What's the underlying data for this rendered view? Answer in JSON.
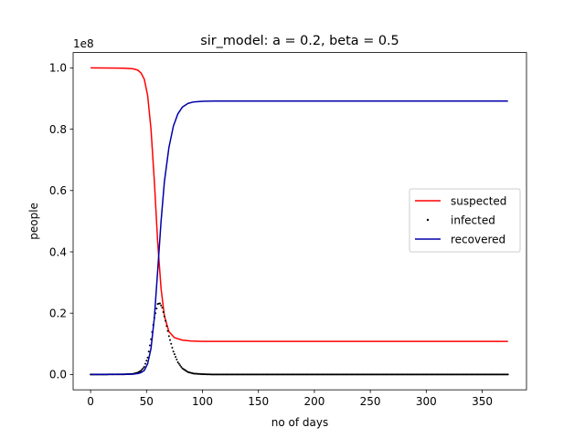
{
  "chart_data": {
    "type": "line",
    "title": "sir_model: a = 0.2, beta = 0.5",
    "xlabel": "no of days",
    "ylabel": "people",
    "y_offset_text": "1e8",
    "xlim": [
      -15.6,
      389.6
    ],
    "ylim": [
      -0.05,
      1.05
    ],
    "y_unit_scale": 100000000,
    "x_ticks": [
      0,
      50,
      100,
      150,
      200,
      250,
      300,
      350
    ],
    "x_tick_labels": [
      "0",
      "50",
      "100",
      "150",
      "200",
      "250",
      "300",
      "350"
    ],
    "y_ticks": [
      0.0,
      0.2,
      0.4,
      0.6,
      0.8,
      1.0
    ],
    "y_tick_labels": [
      "0.0",
      "0.2",
      "0.4",
      "0.6",
      "0.8",
      "1.0"
    ],
    "grid": false,
    "legend_position": "center-right",
    "x_max": 373,
    "series": [
      {
        "name": "suspected",
        "style": "line",
        "color": "#ff0000",
        "points": [
          [
            0,
            1.0
          ],
          [
            30,
            0.999
          ],
          [
            38,
            0.997
          ],
          [
            42,
            0.993
          ],
          [
            45,
            0.984
          ],
          [
            48,
            0.963
          ],
          [
            51,
            0.91
          ],
          [
            54,
            0.8
          ],
          [
            57,
            0.63
          ],
          [
            60,
            0.43
          ],
          [
            63,
            0.28
          ],
          [
            66,
            0.19
          ],
          [
            70,
            0.14
          ],
          [
            75,
            0.12
          ],
          [
            82,
            0.112
          ],
          [
            90,
            0.109
          ],
          [
            100,
            0.108
          ],
          [
            373,
            0.108
          ]
        ]
      },
      {
        "name": "infected",
        "style": "points",
        "color": "#000000",
        "points": [
          [
            0,
            0.0
          ],
          [
            30,
            0.0005
          ],
          [
            38,
            0.002
          ],
          [
            42,
            0.006
          ],
          [
            45,
            0.012
          ],
          [
            48,
            0.025
          ],
          [
            51,
            0.055
          ],
          [
            54,
            0.115
          ],
          [
            57,
            0.185
          ],
          [
            60,
            0.23
          ],
          [
            62,
            0.232
          ],
          [
            64,
            0.218
          ],
          [
            67,
            0.175
          ],
          [
            70,
            0.125
          ],
          [
            74,
            0.075
          ],
          [
            78,
            0.04
          ],
          [
            82,
            0.02
          ],
          [
            87,
            0.008
          ],
          [
            92,
            0.003
          ],
          [
            100,
            0.001
          ],
          [
            110,
            0.0
          ],
          [
            373,
            0.0
          ]
        ]
      },
      {
        "name": "recovered",
        "style": "line",
        "color": "#0000aa",
        "points": [
          [
            0,
            0.0
          ],
          [
            38,
            0.001
          ],
          [
            42,
            0.003
          ],
          [
            45,
            0.006
          ],
          [
            48,
            0.013
          ],
          [
            51,
            0.035
          ],
          [
            54,
            0.085
          ],
          [
            57,
            0.185
          ],
          [
            60,
            0.34
          ],
          [
            63,
            0.5
          ],
          [
            66,
            0.63
          ],
          [
            70,
            0.74
          ],
          [
            74,
            0.81
          ],
          [
            78,
            0.85
          ],
          [
            82,
            0.872
          ],
          [
            87,
            0.884
          ],
          [
            92,
            0.889
          ],
          [
            100,
            0.891
          ],
          [
            110,
            0.892
          ],
          [
            373,
            0.892
          ]
        ]
      }
    ]
  }
}
